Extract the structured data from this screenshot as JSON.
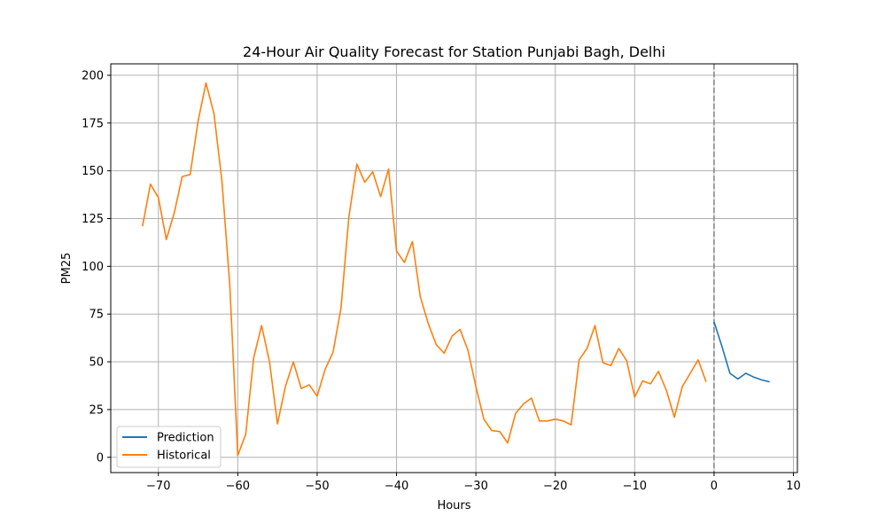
{
  "chart_data": {
    "type": "line",
    "title": "24-Hour Air Quality Forecast for Station Punjabi Bagh, Delhi",
    "xlabel": "Hours",
    "ylabel": "PM25",
    "xlim": [
      -76,
      10.5
    ],
    "ylim": [
      -8,
      206
    ],
    "xticks": [
      -70,
      -60,
      -50,
      -40,
      -30,
      -20,
      -10,
      0,
      10
    ],
    "xtick_labels": [
      "−70",
      "−60",
      "−50",
      "−40",
      "−30",
      "−20",
      "−10",
      "0",
      "10"
    ],
    "yticks": [
      0,
      25,
      50,
      75,
      100,
      125,
      150,
      175,
      200
    ],
    "ytick_labels": [
      "0",
      "25",
      "50",
      "75",
      "100",
      "125",
      "150",
      "175",
      "200"
    ],
    "grid": true,
    "legend_position": "lower-left",
    "reference_line": {
      "x": 0,
      "style": "dashed",
      "color": "#808080"
    },
    "series": [
      {
        "name": "Prediction",
        "color": "#1f77b4",
        "x": [
          0,
          1,
          2,
          3,
          4,
          5,
          6,
          7
        ],
        "y": [
          71,
          58,
          44,
          41,
          44,
          42,
          40.5,
          39.5
        ]
      },
      {
        "name": "Historical",
        "color": "#ff7f0e",
        "x": [
          -72,
          -71,
          -70,
          -69,
          -68,
          -67,
          -66,
          -65,
          -64,
          -63,
          -62,
          -61,
          -60,
          -59,
          -58,
          -57,
          -56,
          -55,
          -54,
          -53,
          -52,
          -51,
          -50,
          -49,
          -48,
          -47,
          -46,
          -45,
          -44,
          -43,
          -42,
          -41,
          -40,
          -39,
          -38,
          -37,
          -36,
          -35,
          -34,
          -33,
          -32,
          -31,
          -30,
          -29,
          -28,
          -27,
          -26,
          -25,
          -24,
          -23,
          -22,
          -21,
          -20,
          -19,
          -18,
          -17,
          -16,
          -15,
          -14,
          -13,
          -12,
          -11,
          -10,
          -9,
          -8,
          -7,
          -6,
          -5,
          -4,
          -3,
          -2,
          -1
        ],
        "y": [
          121,
          143,
          136,
          114,
          128,
          147,
          148,
          176,
          196,
          180,
          145,
          90,
          1,
          12,
          52,
          69,
          50,
          17.5,
          37,
          50,
          36,
          38,
          32,
          46,
          55,
          78,
          126,
          153.5,
          144,
          149.5,
          136.5,
          151,
          108,
          102,
          113,
          84,
          70,
          59,
          54.5,
          63.5,
          67,
          56,
          37,
          20,
          14,
          13.5,
          7.5,
          23,
          28,
          31,
          19,
          19,
          20,
          19,
          17,
          51,
          57,
          69,
          49.5,
          48,
          57,
          50.5,
          31.5,
          40,
          38.5,
          45,
          35,
          21,
          37,
          44,
          51,
          39.5
        ]
      }
    ]
  }
}
